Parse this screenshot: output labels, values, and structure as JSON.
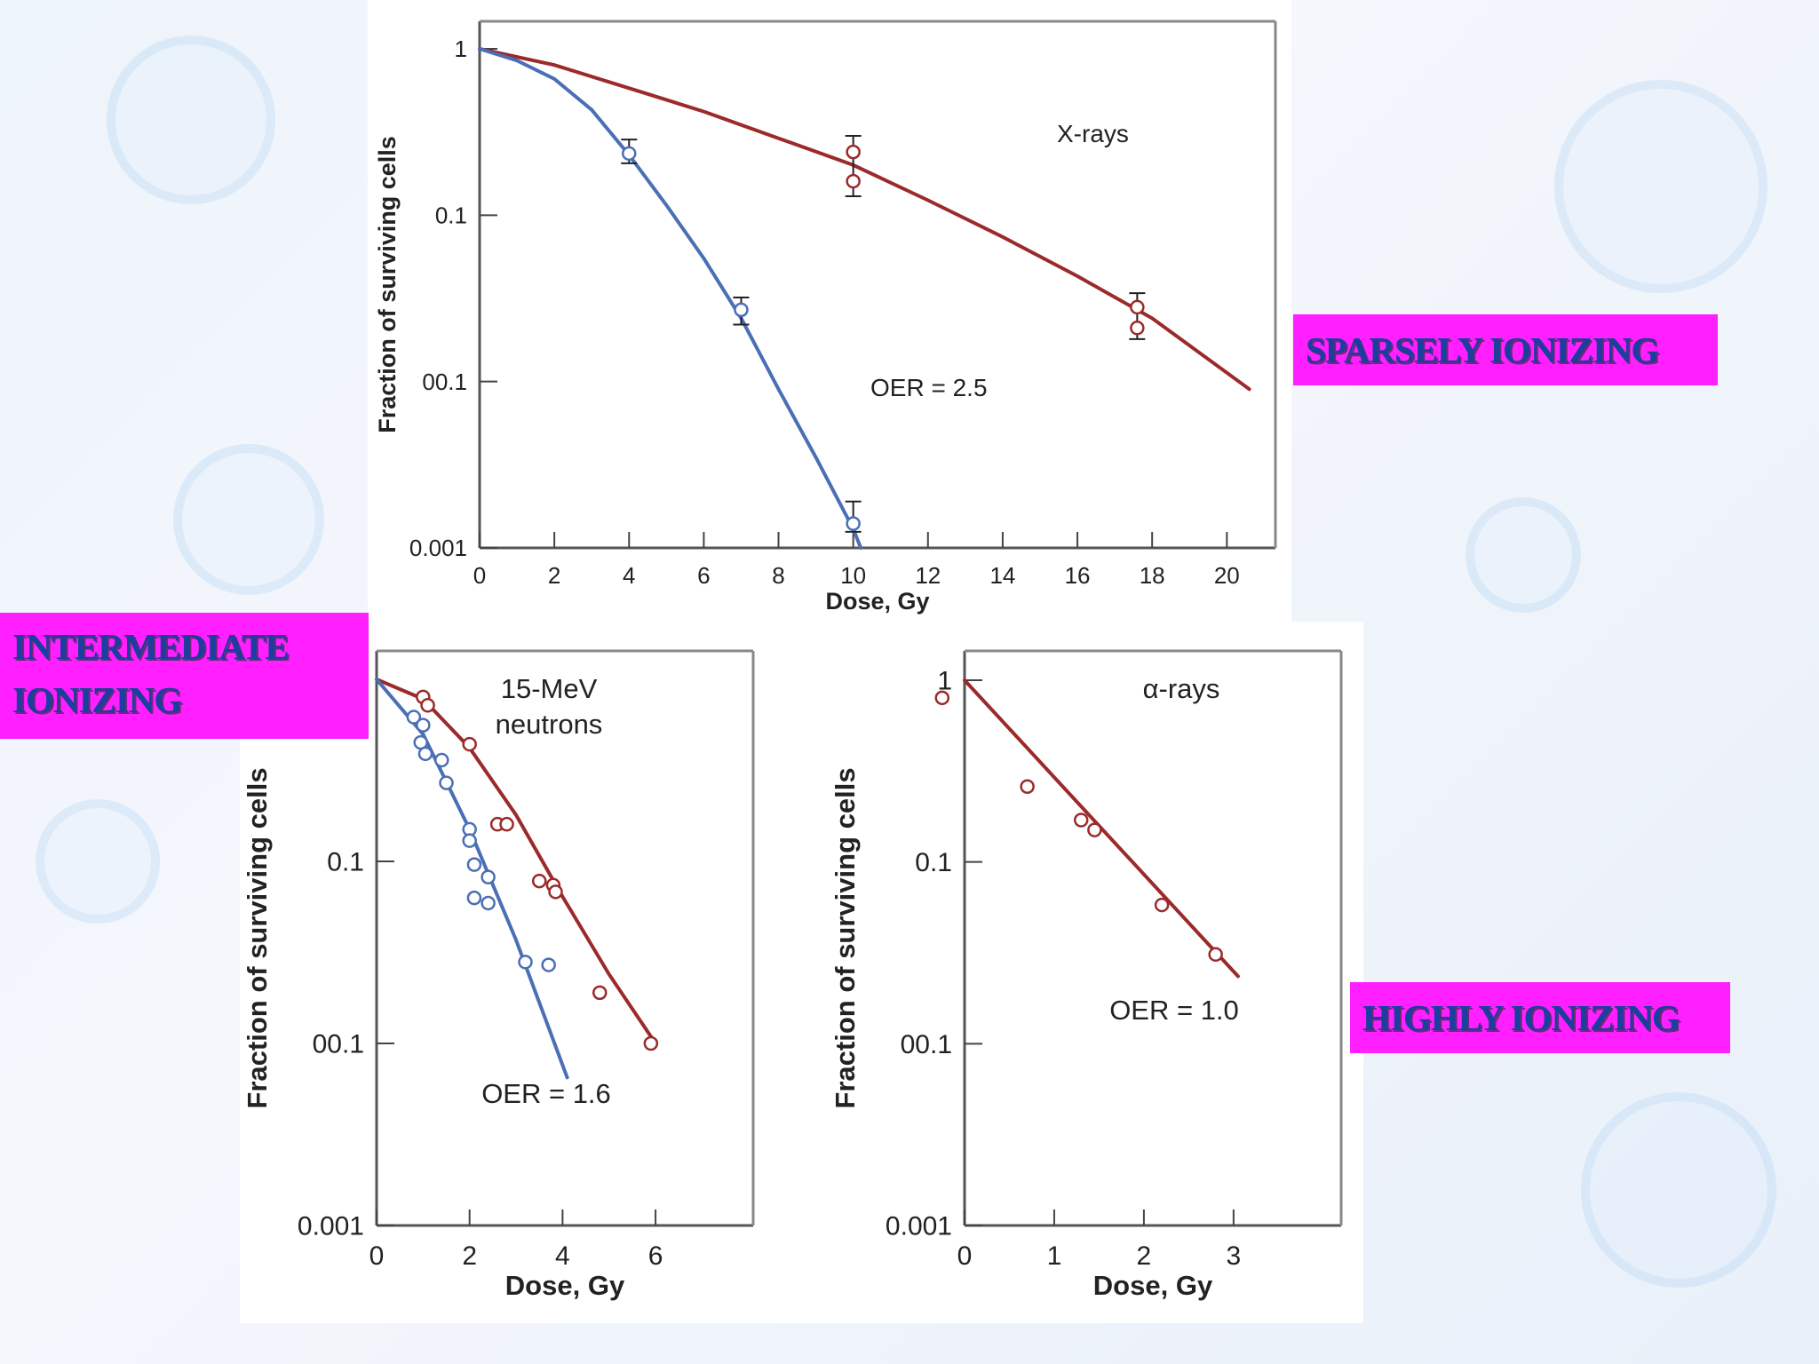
{
  "chart_data": [
    {
      "type": "line",
      "scale": "log",
      "ylabel": "Fraction of surviving cells",
      "xlabel": "Dose, Gy",
      "xlim": [
        0,
        21.3
      ],
      "ylim": [
        0.001,
        1
      ],
      "xticks": [
        0,
        2,
        4,
        6,
        8,
        10,
        12,
        14,
        16,
        18,
        20
      ],
      "ytick_labels": [
        "1",
        "0.1",
        "00.1",
        "0.001"
      ],
      "annotations": [
        "X-rays",
        "OER = 2.5"
      ],
      "series": [
        {
          "color": "#9b2a2a",
          "curve": [
            [
              0,
              1
            ],
            [
              2,
              0.8
            ],
            [
              4,
              0.58
            ],
            [
              6,
              0.42
            ],
            [
              8,
              0.29
            ],
            [
              10,
              0.2
            ],
            [
              12,
              0.123
            ],
            [
              14,
              0.074
            ],
            [
              16,
              0.043
            ],
            [
              18,
              0.024
            ],
            [
              20.6,
              0.009
            ]
          ],
          "points": [
            [
              10,
              0.24
            ],
            [
              10,
              0.16
            ],
            [
              17.6,
              0.028
            ],
            [
              17.6,
              0.021
            ]
          ],
          "errorbars": [
            [
              10,
              0.13,
              0.3
            ],
            [
              17.6,
              0.018,
              0.034
            ]
          ]
        },
        {
          "color": "#4a6fb5",
          "curve": [
            [
              0,
              1
            ],
            [
              1,
              0.85
            ],
            [
              2,
              0.66
            ],
            [
              3,
              0.43
            ],
            [
              4,
              0.23
            ],
            [
              5,
              0.115
            ],
            [
              6,
              0.055
            ],
            [
              7,
              0.024
            ],
            [
              8,
              0.009
            ],
            [
              9,
              0.0035
            ],
            [
              10,
              0.0013
            ],
            [
              10.2,
              0.001
            ]
          ],
          "points": [
            [
              4,
              0.235
            ],
            [
              7,
              0.027
            ],
            [
              10,
              0.0014
            ]
          ],
          "errorbars": [
            [
              4,
              0.205,
              0.285
            ],
            [
              7,
              0.022,
              0.032
            ],
            [
              10,
              0.00125,
              0.0019
            ]
          ]
        }
      ]
    },
    {
      "type": "line",
      "scale": "log",
      "ylabel": "Fraction of surviving cells",
      "xlabel": "Dose, Gy",
      "xlim": [
        0,
        8.1
      ],
      "ylim": [
        0.001,
        1
      ],
      "xticks": [
        0,
        2,
        4,
        6
      ],
      "ytick_labels": [
        "0.1",
        "00.1",
        "0.001"
      ],
      "annotations": [
        "15-MeV",
        "neutrons",
        "OER = 1.6"
      ],
      "series": [
        {
          "color": "#9b2a2a",
          "curve": [
            [
              0,
              1
            ],
            [
              1,
              0.78
            ],
            [
              2,
              0.42
            ],
            [
              3,
              0.18
            ],
            [
              4,
              0.064
            ],
            [
              5,
              0.024
            ],
            [
              6,
              0.01
            ]
          ],
          "points": [
            [
              1.0,
              0.8
            ],
            [
              1.1,
              0.72
            ],
            [
              2.0,
              0.44
            ],
            [
              2.6,
              0.16
            ],
            [
              2.8,
              0.16
            ],
            [
              3.5,
              0.078
            ],
            [
              3.8,
              0.074
            ],
            [
              3.85,
              0.068
            ],
            [
              4.8,
              0.019
            ],
            [
              5.9,
              0.01
            ]
          ]
        },
        {
          "color": "#4a6fb5",
          "curve": [
            [
              0,
              1
            ],
            [
              1,
              0.5
            ],
            [
              2,
              0.15
            ],
            [
              3,
              0.037
            ],
            [
              4.1,
              0.0065
            ]
          ],
          "points": [
            [
              0.8,
              0.62
            ],
            [
              1.0,
              0.56
            ],
            [
              0.95,
              0.45
            ],
            [
              1.05,
              0.39
            ],
            [
              1.4,
              0.36
            ],
            [
              1.5,
              0.27
            ],
            [
              2.0,
              0.15
            ],
            [
              2.0,
              0.13
            ],
            [
              2.1,
              0.096
            ],
            [
              2.4,
              0.082
            ],
            [
              2.1,
              0.063
            ],
            [
              2.4,
              0.059
            ],
            [
              3.2,
              0.028
            ],
            [
              3.7,
              0.027
            ]
          ]
        }
      ]
    },
    {
      "type": "line",
      "scale": "log",
      "ylabel": "Fraction of surviving cells",
      "xlabel": "Dose, Gy",
      "xlim": [
        0,
        4.2
      ],
      "ylim": [
        0.001,
        1
      ],
      "xticks": [
        0,
        1,
        2,
        3
      ],
      "ytick_labels": [
        "1",
        "0.1",
        "00.1",
        "0.001"
      ],
      "annotations": [
        "α-rays",
        "OER = 1.0"
      ],
      "series": [
        {
          "color": "#9b2a2a",
          "curve": [
            [
              0,
              1
            ],
            [
              3.05,
              0.0235
            ]
          ],
          "points": [
            [
              -0.25,
              0.8
            ],
            [
              0.7,
              0.26
            ],
            [
              1.3,
              0.17
            ],
            [
              1.45,
              0.15
            ],
            [
              2.2,
              0.058
            ],
            [
              2.8,
              0.031
            ]
          ]
        }
      ]
    }
  ],
  "tags": {
    "sparse": "SPARSELY IONIZING",
    "intermediate_line1": "INTERMEDIATE",
    "intermediate_line2": "IONIZING",
    "highly": "HIGHLY IONIZING"
  }
}
